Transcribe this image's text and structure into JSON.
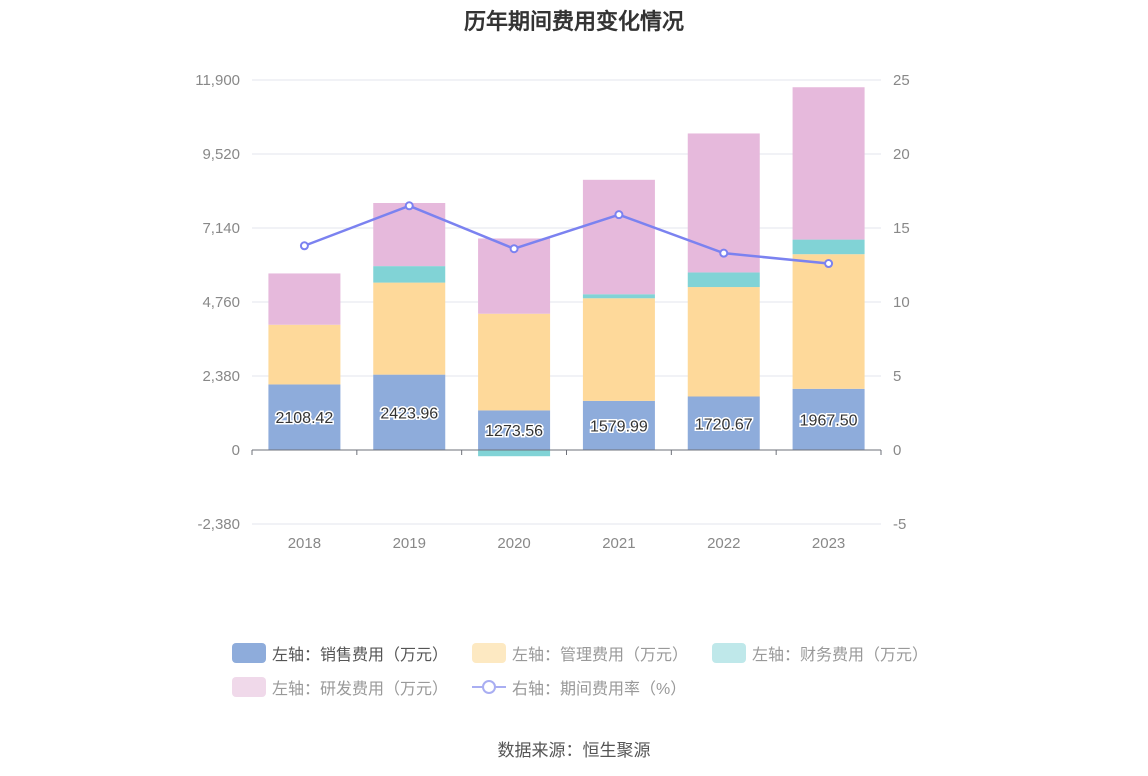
{
  "title": "历年期间费用变化情况",
  "source": "数据来源：恒生聚源",
  "legend": [
    {
      "label": "左轴：销售费用（万元）",
      "color": "#8eacdb",
      "active": true
    },
    {
      "label": "左轴：管理费用（万元）",
      "color": "#fde9c2",
      "active": false
    },
    {
      "label": "左轴：财务费用（万元）",
      "color": "#bfe8ea",
      "active": false
    },
    {
      "label": "左轴：研发费用（万元）",
      "color": "#f0d9ea",
      "active": false
    },
    {
      "label": "右轴：期间费用率（%）",
      "color": "#a9aef2",
      "active": false
    }
  ],
  "chart_data": {
    "type": "bar",
    "stacked": true,
    "categories": [
      "2018",
      "2019",
      "2020",
      "2021",
      "2022",
      "2023"
    ],
    "left_axis": {
      "ticks": [
        "11,900",
        "9,520",
        "7,140",
        "4,760",
        "2,380",
        "0",
        "-2,380"
      ],
      "ylim": [
        -2380,
        11900
      ]
    },
    "right_axis": {
      "ticks": [
        "25",
        "20",
        "15",
        "10",
        "5",
        "0",
        "-5"
      ],
      "ylim": [
        -5,
        25
      ]
    },
    "series": [
      {
        "name": "左轴：销售费用（万元）",
        "axis": "left",
        "color": "#8eacdb",
        "values": [
          2108.42,
          2423.96,
          1273.56,
          1579.99,
          1720.67,
          1967.5
        ],
        "labels": [
          "2108.42",
          "2423.96",
          "1273.56",
          "1579.99",
          "1720.67",
          "1967.50"
        ]
      },
      {
        "name": "左轴：管理费用（万元）",
        "axis": "left",
        "color": "#fed99a",
        "values": [
          1920,
          2960,
          3110,
          3300,
          3520,
          4330
        ]
      },
      {
        "name": "左轴：财务费用（万元）",
        "axis": "left",
        "color": "#81d3d6",
        "values": [
          0,
          530,
          -200,
          130,
          470,
          470
        ]
      },
      {
        "name": "左轴：研发费用（万元）",
        "axis": "left",
        "color": "#e6b9dc",
        "values": [
          1650,
          2030,
          2420,
          3680,
          4470,
          4900
        ]
      },
      {
        "name": "右轴：期间费用率（%）",
        "axis": "right",
        "type": "line",
        "color": "#7b82f0",
        "values": [
          13.8,
          16.5,
          13.6,
          15.9,
          13.3,
          12.6
        ]
      }
    ],
    "grid": true
  }
}
